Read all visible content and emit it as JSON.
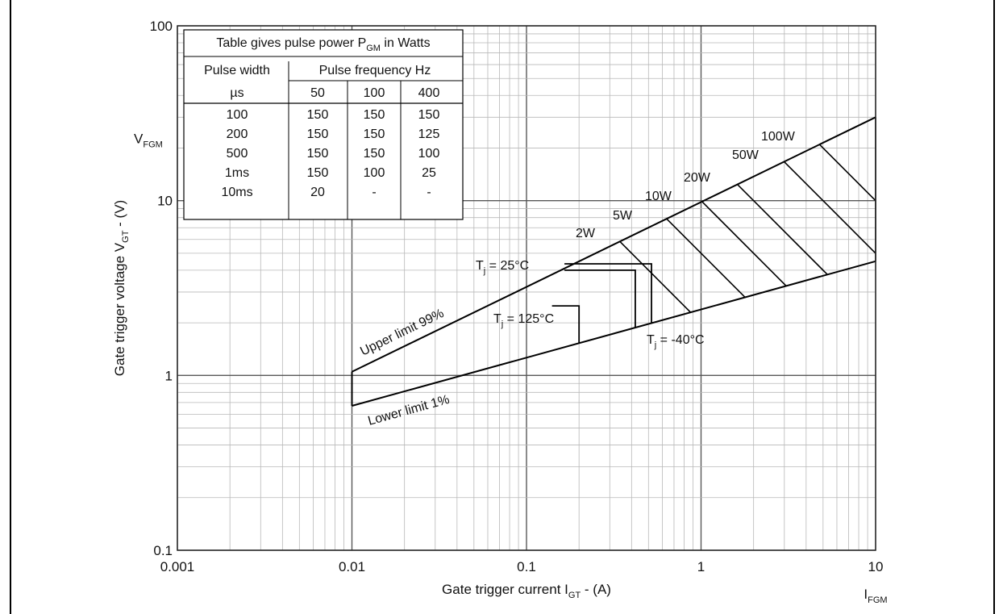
{
  "chart_data": {
    "type": "line",
    "xlabel": "Gate trigger current I",
    "xlabel_sub": "GT",
    "xlabel_unit": " - (A)",
    "ylabel": "Gate trigger voltage V",
    "ylabel_sub": "GT",
    "ylabel_unit": " - (V)",
    "x_scale": "log",
    "y_scale": "log",
    "xlim": [
      0.001,
      10
    ],
    "ylim": [
      0.1,
      100
    ],
    "grid": true,
    "x_ticks": [
      "0.001",
      "0.01",
      "0.1",
      "1",
      "10"
    ],
    "y_ticks": [
      "0.1",
      "1",
      "10",
      "100"
    ],
    "x_marker": {
      "label": "I",
      "sub": "FGM",
      "x": 10
    },
    "y_marker": {
      "label": "V",
      "sub": "FGM",
      "y": 20
    },
    "series": [
      {
        "name": "Upper limit 99%",
        "points": [
          [
            0.01,
            1.05
          ],
          [
            10,
            30
          ]
        ]
      },
      {
        "name": "Lower limit 1%",
        "points": [
          [
            0.01,
            0.67
          ],
          [
            10,
            4.5
          ]
        ]
      }
    ],
    "region_left_edge": [
      [
        0.01,
        0.67
      ],
      [
        0.01,
        1.05
      ]
    ],
    "temperature_boxes": [
      {
        "label": "T",
        "sub": "j",
        "rest": " = 25°C",
        "i": 0.52,
        "v": 4.2,
        "v_top": 4.35
      },
      {
        "label": "T",
        "sub": "j",
        "rest": " = 125°C",
        "i": 0.2,
        "v": 2.5,
        "v_top": 2.5
      },
      {
        "label": "T",
        "sub": "j",
        "rest": " = -40°C",
        "i": 0.42,
        "v": 4.0,
        "v_top": 4.0
      }
    ],
    "power_curves": [
      {
        "label": "2W",
        "pmax": 2
      },
      {
        "label": "5W",
        "pmax": 5
      },
      {
        "label": "10W",
        "pmax": 10
      },
      {
        "label": "20W",
        "pmax": 20
      },
      {
        "label": "50W",
        "pmax": 50
      },
      {
        "label": "100W",
        "pmax": 100
      }
    ],
    "table": {
      "title": "Table gives pulse power P",
      "title_sub": "GM",
      "title_rest": " in Watts",
      "col1_header": "Pulse width",
      "col1_unit": "µs",
      "group_header": "Pulse frequency Hz",
      "freq_headers": [
        "50",
        "100",
        "400"
      ],
      "rows": [
        [
          "100",
          "150",
          "150",
          "150"
        ],
        [
          "200",
          "150",
          "150",
          "125"
        ],
        [
          "500",
          "150",
          "150",
          "100"
        ],
        [
          "1ms",
          "150",
          "100",
          "25"
        ],
        [
          "10ms",
          "20",
          "-",
          "-"
        ]
      ]
    }
  }
}
